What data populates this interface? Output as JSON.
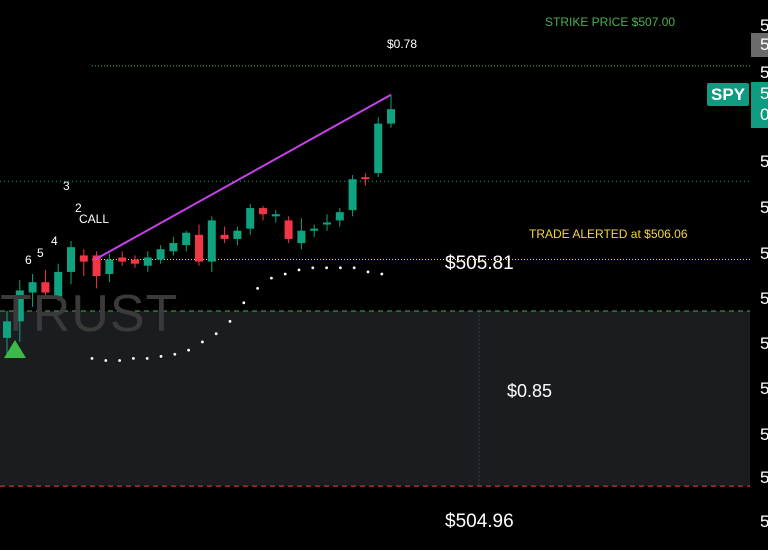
{
  "chart_data": {
    "type": "candlestick",
    "ticker": "SPY",
    "watermark": "TRUST",
    "strike_label": "STRIKE PRICE $507.00",
    "alert_label": "TRADE ALERTED at $506.06",
    "peak_label": "$0.78",
    "target_label": "$505.81",
    "stop_label": "$504.96",
    "zone_label": "$0.85",
    "call_label": "CALL",
    "wave_counts": [
      "6",
      "5",
      "4",
      "3",
      "2"
    ],
    "price_range": [
      504.65,
      507.32
    ],
    "levels": {
      "strike": 507.0,
      "alert": 506.06,
      "target": 505.81,
      "stop": 504.96,
      "current": 506.44
    },
    "candles": [
      {
        "o": 505.68,
        "h": 505.81,
        "l": 505.58,
        "c": 505.76
      },
      {
        "o": 505.76,
        "h": 505.96,
        "l": 505.66,
        "c": 505.91
      },
      {
        "o": 505.9,
        "h": 505.99,
        "l": 505.83,
        "c": 505.95
      },
      {
        "o": 505.95,
        "h": 506.01,
        "l": 505.88,
        "c": 505.9
      },
      {
        "o": 505.88,
        "h": 506.04,
        "l": 505.86,
        "c": 506.0
      },
      {
        "o": 506.0,
        "h": 506.15,
        "l": 505.94,
        "c": 506.12
      },
      {
        "o": 506.08,
        "h": 506.11,
        "l": 505.98,
        "c": 506.05
      },
      {
        "o": 506.08,
        "h": 506.1,
        "l": 505.92,
        "c": 505.98
      },
      {
        "o": 505.99,
        "h": 506.09,
        "l": 505.95,
        "c": 506.06
      },
      {
        "o": 506.07,
        "h": 506.1,
        "l": 506.03,
        "c": 506.05
      },
      {
        "o": 506.06,
        "h": 506.08,
        "l": 506.02,
        "c": 506.04
      },
      {
        "o": 506.03,
        "h": 506.1,
        "l": 506.0,
        "c": 506.07
      },
      {
        "o": 506.06,
        "h": 506.13,
        "l": 506.04,
        "c": 506.11
      },
      {
        "o": 506.1,
        "h": 506.17,
        "l": 506.08,
        "c": 506.14
      },
      {
        "o": 506.13,
        "h": 506.2,
        "l": 506.1,
        "c": 506.19
      },
      {
        "o": 506.18,
        "h": 506.23,
        "l": 506.03,
        "c": 506.05
      },
      {
        "o": 506.05,
        "h": 506.27,
        "l": 506.0,
        "c": 506.25
      },
      {
        "o": 506.18,
        "h": 506.22,
        "l": 506.14,
        "c": 506.16
      },
      {
        "o": 506.16,
        "h": 506.22,
        "l": 506.13,
        "c": 506.2
      },
      {
        "o": 506.21,
        "h": 506.33,
        "l": 506.18,
        "c": 506.31
      },
      {
        "o": 506.31,
        "h": 506.32,
        "l": 506.25,
        "c": 506.28
      },
      {
        "o": 506.27,
        "h": 506.3,
        "l": 506.24,
        "c": 506.28
      },
      {
        "o": 506.25,
        "h": 506.27,
        "l": 506.14,
        "c": 506.16
      },
      {
        "o": 506.14,
        "h": 506.26,
        "l": 506.11,
        "c": 506.2
      },
      {
        "o": 506.2,
        "h": 506.23,
        "l": 506.17,
        "c": 506.21
      },
      {
        "o": 506.23,
        "h": 506.28,
        "l": 506.2,
        "c": 506.24
      },
      {
        "o": 506.25,
        "h": 506.31,
        "l": 506.22,
        "c": 506.29
      },
      {
        "o": 506.3,
        "h": 506.47,
        "l": 506.27,
        "c": 506.45
      },
      {
        "o": 506.46,
        "h": 506.48,
        "l": 506.42,
        "c": 506.45
      },
      {
        "o": 506.48,
        "h": 506.75,
        "l": 506.46,
        "c": 506.72
      },
      {
        "o": 506.72,
        "h": 506.86,
        "l": 506.7,
        "c": 506.79
      }
    ],
    "trendline": [
      [
        0,
        506.06
      ],
      [
        30,
        506.86
      ]
    ],
    "dotted_curve": [
      505.58,
      505.57,
      505.57,
      505.58,
      505.58,
      505.59,
      505.6,
      505.62,
      505.66,
      505.7,
      505.76,
      505.85,
      505.92,
      505.97,
      505.99,
      506.01,
      506.02,
      506.02,
      506.02,
      506.02,
      506.0,
      505.99
    ],
    "colors": {
      "bull": "#10a37f",
      "bear": "#f23645",
      "trendline": "#c542e8",
      "strike": "#4caf50",
      "alert": "#f5d742",
      "target_zone": "#1a1c20",
      "dots": "#ffffff"
    }
  },
  "axis": {
    "ticks": [
      "5",
      "5",
      "5",
      "5",
      "5",
      "5",
      "5",
      "5",
      "5",
      "5",
      "5",
      "5"
    ],
    "current_price_digit": "5",
    "current_price_sub": "0",
    "box_digit": "5"
  }
}
